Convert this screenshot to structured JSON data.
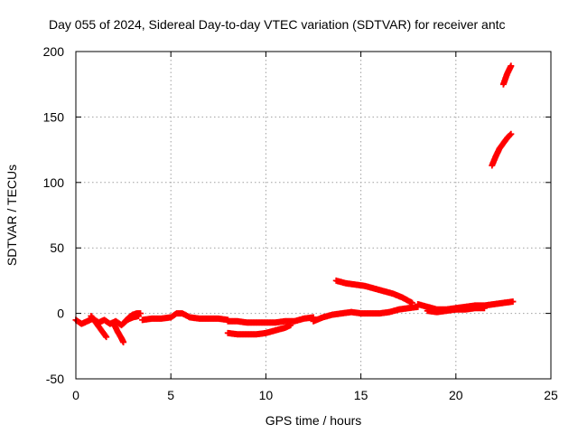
{
  "chart_data": {
    "type": "scatter",
    "title": "Day 055 of 2024, Sidereal Day-to-day VTEC variation (SDTVAR) for receiver antc",
    "xlabel": "GPS time / hours",
    "ylabel": "SDTVAR / TECUs",
    "xlim": [
      0,
      25
    ],
    "ylim": [
      -50,
      200
    ],
    "xticks": [
      "0",
      "5",
      "10",
      "15",
      "20",
      "25"
    ],
    "yticks": [
      "-50",
      "0",
      "50",
      "100",
      "150",
      "200"
    ],
    "grid": true,
    "marker": "+",
    "color": "#ff0000",
    "series": [
      {
        "segments": [
          {
            "x": [
              0.0,
              0.3,
              0.6,
              0.9,
              1.2,
              1.5,
              1.8,
              2.1,
              2.4,
              2.7,
              3.0,
              3.3
            ],
            "y": [
              -5,
              -8,
              -6,
              -4,
              -7,
              -5,
              -8,
              -6,
              -9,
              -5,
              -3,
              -2
            ]
          },
          {
            "x": [
              0.8,
              1.0,
              1.2,
              1.4,
              1.6
            ],
            "y": [
              -2,
              -6,
              -10,
              -14,
              -18
            ]
          },
          {
            "x": [
              2.0,
              2.2,
              2.4,
              2.5
            ],
            "y": [
              -8,
              -14,
              -19,
              -22
            ]
          },
          {
            "x": [
              2.6,
              2.8,
              3.0,
              3.2,
              3.4
            ],
            "y": [
              -6,
              -3,
              -1,
              0,
              0
            ]
          },
          {
            "x": [
              3.5,
              4.0,
              4.5,
              5.0,
              5.3,
              5.6,
              6.0,
              6.5,
              7.0,
              7.5,
              8.0
            ],
            "y": [
              -5,
              -4,
              -4,
              -3,
              0,
              0,
              -3,
              -4,
              -4,
              -4,
              -5
            ]
          },
          {
            "x": [
              8.0,
              8.5,
              9.0,
              9.5,
              10.0,
              10.5,
              11.0,
              11.5,
              12.0,
              12.5
            ],
            "y": [
              -6,
              -6,
              -7,
              -7,
              -7,
              -7,
              -6,
              -6,
              -4,
              -3
            ]
          },
          {
            "x": [
              8.0,
              8.5,
              9.0,
              9.5,
              10.0,
              10.5,
              11.0,
              11.3
            ],
            "y": [
              -15,
              -16,
              -16,
              -16,
              -15,
              -13,
              -11,
              -9
            ]
          },
          {
            "x": [
              12.5,
              13.0,
              13.5,
              14.0,
              14.5,
              15.0,
              15.5,
              16.0,
              16.5,
              17.0,
              17.5,
              18.0
            ],
            "y": [
              -6,
              -3,
              -1,
              0,
              1,
              0,
              0,
              0,
              1,
              3,
              4,
              5
            ]
          },
          {
            "x": [
              13.7,
              14.2,
              14.7,
              15.2,
              15.7,
              16.2,
              16.7,
              17.2,
              17.7
            ],
            "y": [
              25,
              23,
              22,
              21,
              19,
              17,
              15,
              12,
              8
            ]
          },
          {
            "x": [
              18.0,
              18.5,
              19.0,
              19.5,
              20.0,
              20.5,
              21.0,
              21.5,
              22.0,
              22.5,
              23.0
            ],
            "y": [
              7,
              5,
              3,
              3,
              4,
              5,
              6,
              6,
              7,
              8,
              9
            ]
          },
          {
            "x": [
              18.5,
              19.0,
              19.5,
              20.0,
              20.5,
              21.0,
              21.5
            ],
            "y": [
              2,
              1,
              2,
              3,
              3,
              4,
              4
            ]
          },
          {
            "x": [
              21.9,
              22.1,
              22.3,
              22.5,
              22.7,
              22.9
            ],
            "y": [
              113,
              120,
              126,
              130,
              134,
              137
            ]
          },
          {
            "x": [
              22.5,
              22.6,
              22.7,
              22.8,
              22.9
            ],
            "y": [
              175,
              179,
              183,
              186,
              189
            ]
          }
        ]
      }
    ]
  }
}
